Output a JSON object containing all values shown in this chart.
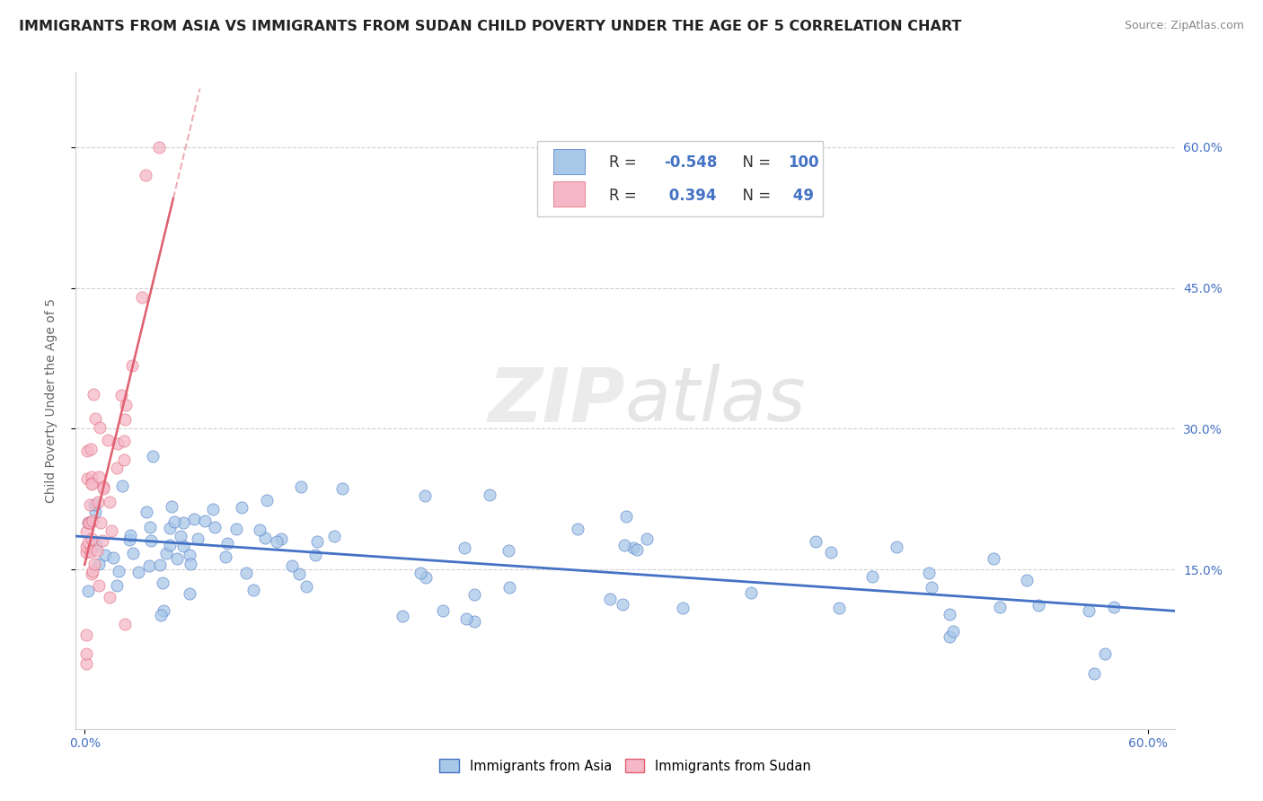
{
  "title": "IMMIGRANTS FROM ASIA VS IMMIGRANTS FROM SUDAN CHILD POVERTY UNDER THE AGE OF 5 CORRELATION CHART",
  "source": "Source: ZipAtlas.com",
  "ylabel": "Child Poverty Under the Age of 5",
  "color_asia": "#a8c8e8",
  "color_sudan": "#f5b8c8",
  "color_asia_line": "#4472c4",
  "color_sudan_line": "#e06070",
  "watermark_zip": "ZIP",
  "watermark_atlas": "atlas",
  "background_color": "#ffffff",
  "title_fontsize": 11.5,
  "source_fontsize": 9,
  "axis_label_fontsize": 10,
  "tick_fontsize": 10,
  "legend_fontsize": 12,
  "asia_r": "-0.548",
  "asia_n": "100",
  "sudan_r": "0.394",
  "sudan_n": "49"
}
